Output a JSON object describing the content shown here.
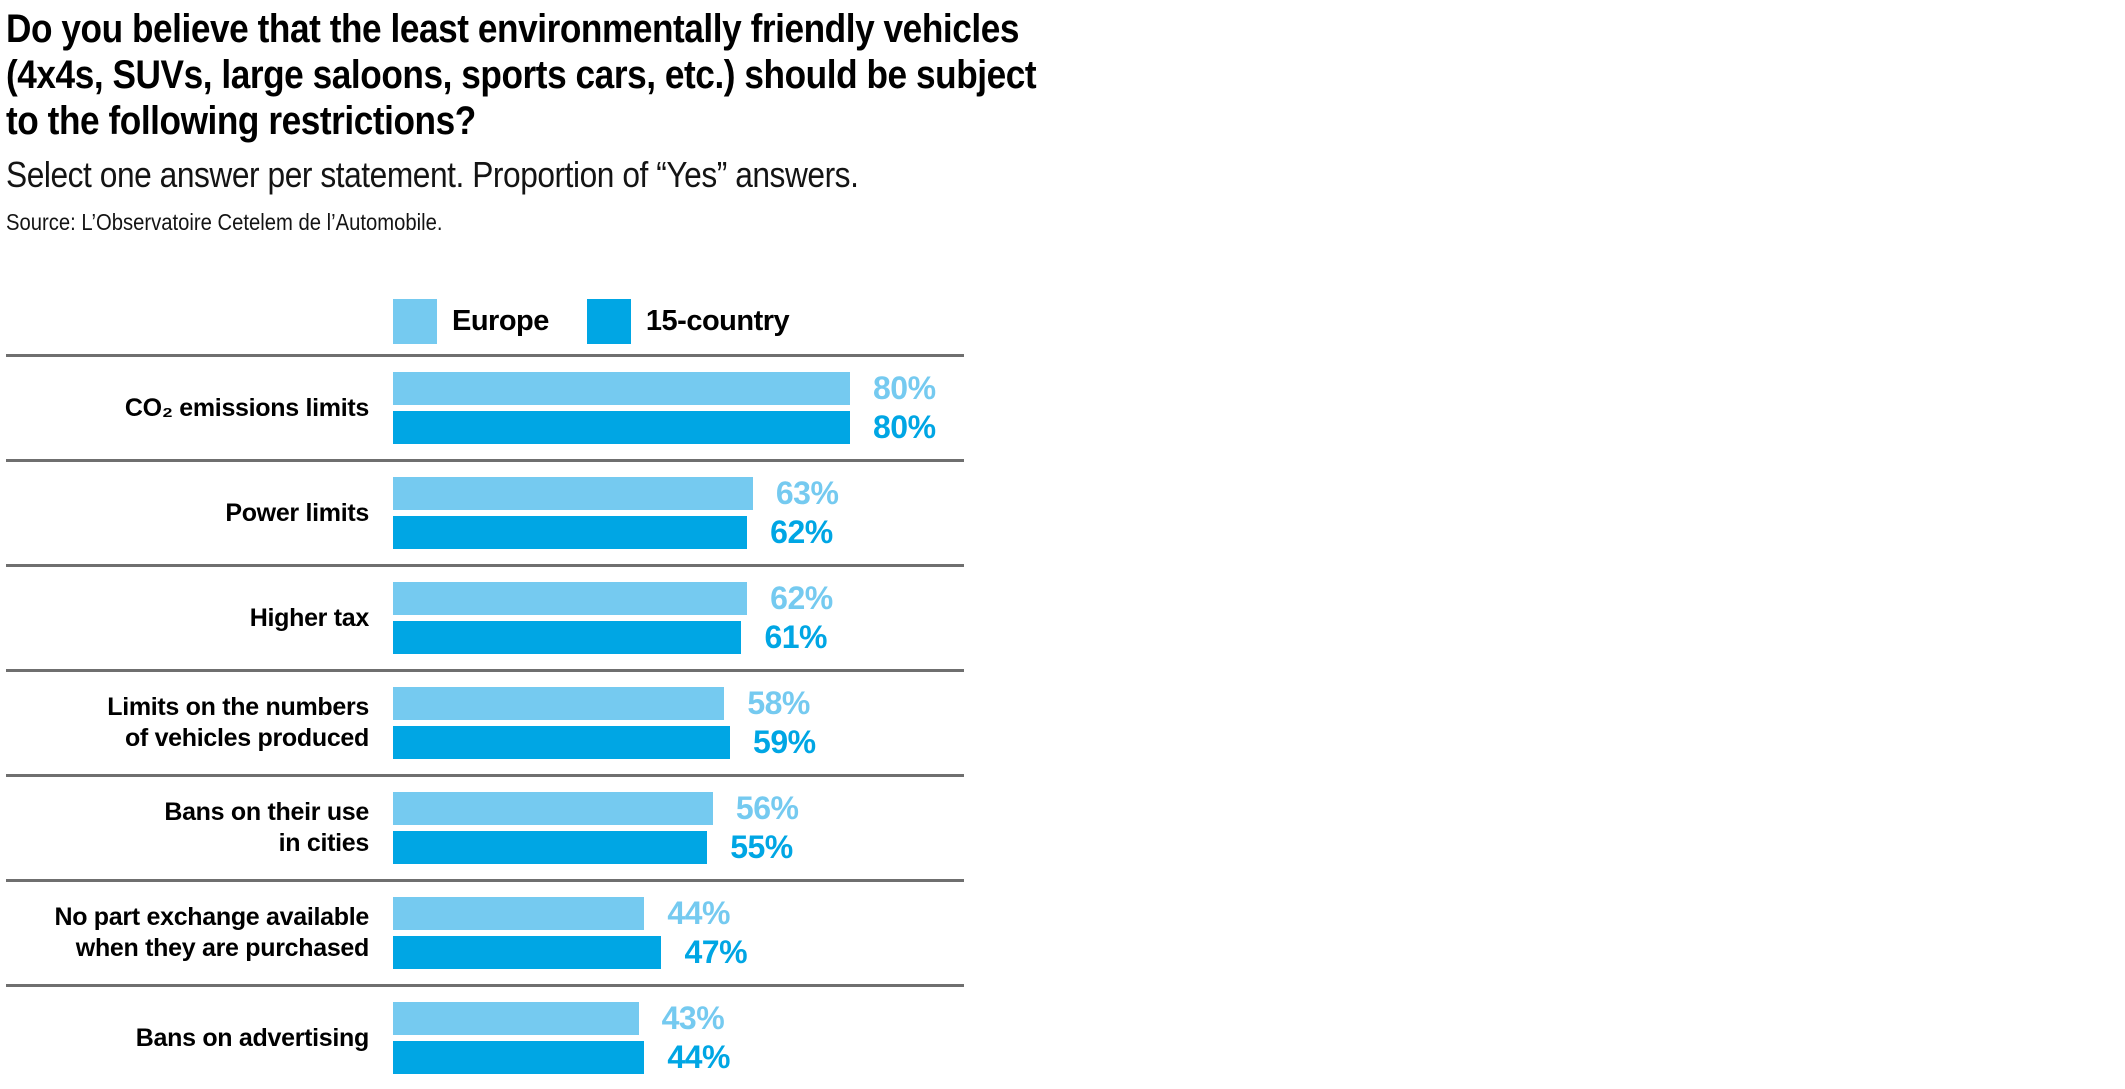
{
  "header": {
    "title_lines": [
      "Do you believe that the least environmentally friendly vehicles",
      "(4x4s, SUVs, large saloons, sports cars, etc.) should be subject",
      "to the following restrictions?"
    ],
    "subtitle": "Select one answer per statement. Proportion of “Yes” answers.",
    "source": "Source: L’Observatoire Cetelem de l’Automobile."
  },
  "legend": [
    {
      "label": "Europe",
      "color": "#75CAF0"
    },
    {
      "label": "15-country",
      "color": "#00A6E4"
    }
  ],
  "colors": {
    "europe_bar": "#75CAF0",
    "fifteen_country_bar": "#00A6E4",
    "separator": "#6F6F6F",
    "text": "#000000"
  },
  "chart_data": {
    "type": "bar",
    "orientation": "horizontal",
    "title": "Do you believe that the least environmentally friendly vehicles (4x4s, SUVs, large saloons, sports cars, etc.) should be subject to the following restrictions?",
    "subtitle": "Select one answer per statement. Proportion of “Yes” answers.",
    "source": "Source: L’Observatoire Cetelem de l’Automobile.",
    "categories": [
      "CO₂ emissions limits",
      "Power limits",
      "Higher tax",
      "Limits on the numbers\nof vehicles produced",
      "Bans on their use\nin cities",
      "No part exchange available\nwhen they are purchased",
      "Bans on advertising"
    ],
    "series": [
      {
        "name": "Europe",
        "color": "#75CAF0",
        "values": [
          80,
          63,
          62,
          58,
          56,
          44,
          43
        ]
      },
      {
        "name": "15-country",
        "color": "#00A6E4",
        "values": [
          80,
          62,
          61,
          59,
          55,
          47,
          44
        ]
      }
    ],
    "value_suffix": "%",
    "xlim": [
      0,
      80
    ],
    "grid": false,
    "legend_position": "top",
    "value_labels": "end-of-bar, colored to match series"
  }
}
